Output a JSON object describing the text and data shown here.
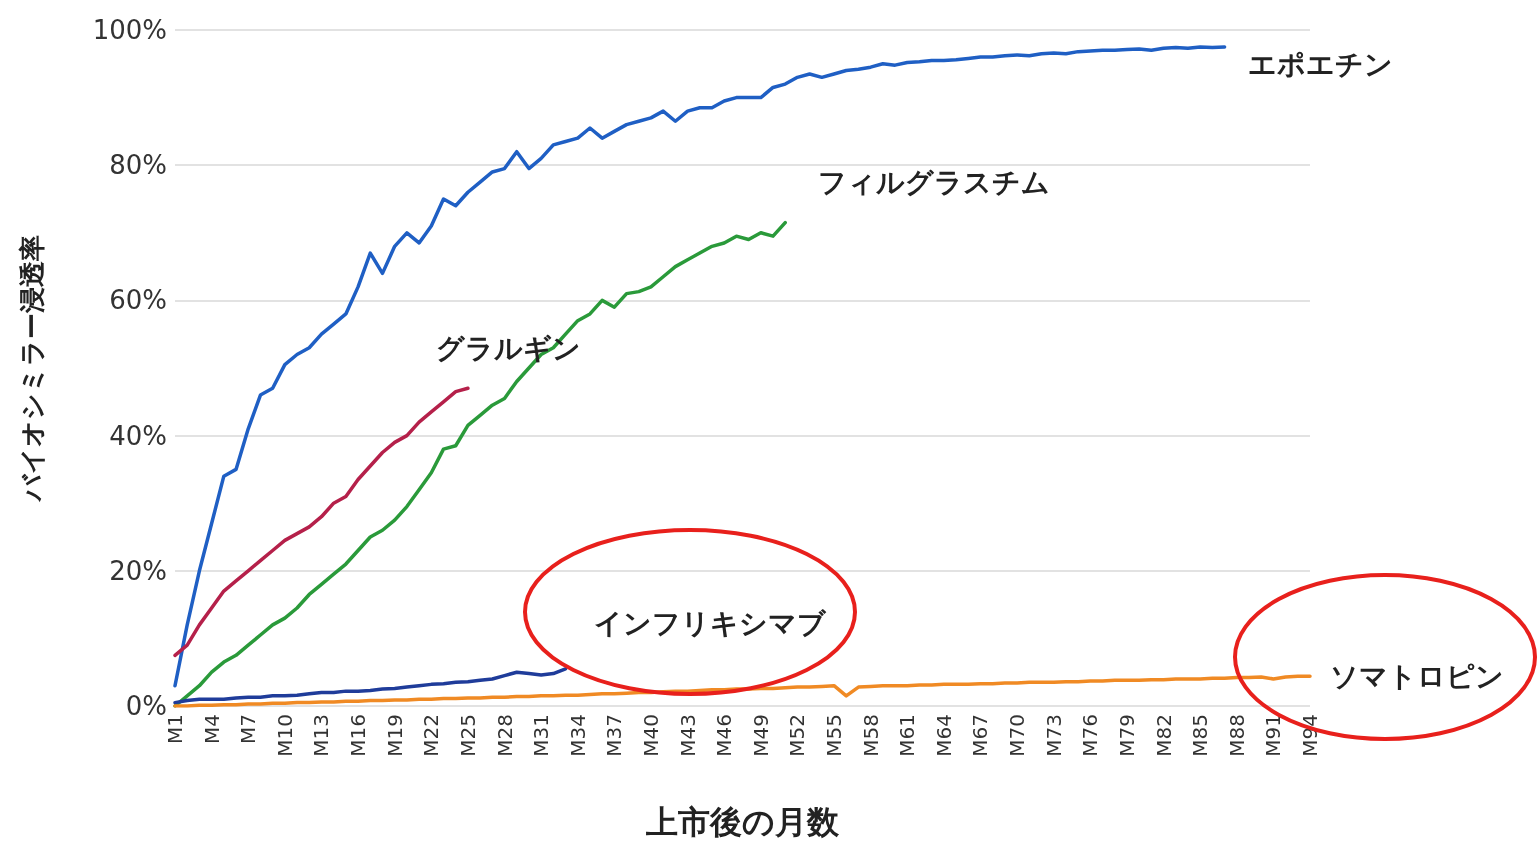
{
  "chart_data": {
    "type": "line",
    "xlabel": "上市後の月数",
    "ylabel": "バイオシミラー浸透率",
    "categories": [
      "M1",
      null,
      null,
      "M4",
      null,
      null,
      "M7",
      null,
      null,
      "M10",
      null,
      null,
      "M13",
      null,
      null,
      "M16",
      null,
      null,
      "M19",
      null,
      null,
      "M22",
      null,
      null,
      "M25",
      null,
      null,
      "M28",
      null,
      null,
      "M31",
      null,
      null,
      "M34",
      null,
      null,
      "M37",
      null,
      null,
      "M40",
      null,
      null,
      "M43",
      null,
      null,
      "M46",
      null,
      null,
      "M49",
      null,
      null,
      "M52",
      null,
      null,
      "M55",
      null,
      null,
      "M58",
      null,
      null,
      "M61",
      null,
      null,
      "M64",
      null,
      null,
      "M67",
      null,
      null,
      "M70",
      null,
      null,
      "M73",
      null,
      null,
      "M76",
      null,
      null,
      "M79",
      null,
      null,
      "M82",
      null,
      null,
      "M85",
      null,
      null,
      "M88",
      null,
      null,
      "M91",
      null,
      null,
      "M94"
    ],
    "ylim": [
      0,
      100
    ],
    "yticks": [
      {
        "value": 0,
        "label": "0%"
      },
      {
        "value": 20,
        "label": "20%"
      },
      {
        "value": 40,
        "label": "40%"
      },
      {
        "value": 60,
        "label": "60%"
      },
      {
        "value": 80,
        "label": "80%"
      },
      {
        "value": 100,
        "label": "100%"
      }
    ],
    "grid": "y",
    "legend": false,
    "marker": "none",
    "line_style": "solid",
    "series": [
      {
        "name": "エポエチン",
        "color": "#1f5fc4",
        "values": [
          3,
          12,
          20,
          27,
          34,
          35,
          41,
          46,
          47,
          50.5,
          52,
          53,
          55,
          56.5,
          58,
          62,
          67,
          64,
          68,
          70,
          68.5,
          71,
          75,
          74,
          76,
          77.5,
          79,
          79.5,
          82,
          79.5,
          81,
          83,
          83.5,
          84,
          85.5,
          84,
          85,
          86,
          86.5,
          87,
          88,
          86.5,
          88,
          88.5,
          88.5,
          89.5,
          90,
          90,
          90,
          91.5,
          92,
          93,
          93.5,
          93,
          93.5,
          94,
          94.2,
          94.5,
          95,
          94.8,
          95.2,
          95.3,
          95.5,
          95.5,
          95.6,
          95.8,
          96,
          96,
          96.2,
          96.3,
          96.2,
          96.5,
          96.6,
          96.5,
          96.8,
          96.9,
          97,
          97,
          97.1,
          97.2,
          97,
          97.3,
          97.4,
          97.3,
          97.5,
          97.4,
          97.5,
          null,
          null,
          null,
          null,
          null,
          null,
          null
        ]
      },
      {
        "name": "フィルグラスチム",
        "color": "#2a9a3a",
        "values": [
          0,
          1.5,
          3,
          5,
          6.5,
          7.5,
          9,
          10.5,
          12,
          13,
          14.5,
          16.5,
          18,
          19.5,
          21,
          23,
          25,
          26,
          27.5,
          29.5,
          32,
          34.5,
          38,
          38.5,
          41.5,
          43,
          44.5,
          45.5,
          48,
          50,
          52,
          53,
          55,
          57,
          58,
          60,
          59,
          61,
          61.3,
          62,
          63.5,
          65,
          66,
          67,
          68,
          68.5,
          69.5,
          69,
          70,
          69.5,
          71.5,
          null,
          null,
          null,
          null,
          null,
          null,
          null,
          null,
          null,
          null,
          null,
          null,
          null,
          null,
          null,
          null,
          null,
          null,
          null,
          null,
          null,
          null,
          null,
          null,
          null,
          null,
          null,
          null,
          null,
          null,
          null,
          null,
          null,
          null,
          null,
          null,
          null,
          null,
          null,
          null,
          null,
          null,
          null
        ]
      },
      {
        "name": "グラルギン",
        "color": "#b5204a",
        "values": [
          7.5,
          9,
          12,
          14.5,
          17,
          18.5,
          20,
          21.5,
          23,
          24.5,
          25.5,
          26.5,
          28,
          30,
          31,
          33.5,
          35.5,
          37.5,
          39,
          40,
          42,
          43.5,
          45,
          46.5,
          47,
          null,
          null,
          null,
          null,
          null,
          null,
          null,
          null,
          null,
          null,
          null,
          null,
          null,
          null,
          null,
          null,
          null,
          null,
          null,
          null,
          null,
          null,
          null,
          null,
          null,
          null,
          null,
          null,
          null,
          null,
          null,
          null,
          null,
          null,
          null,
          null,
          null,
          null,
          null,
          null,
          null,
          null,
          null,
          null,
          null,
          null,
          null,
          null,
          null,
          null,
          null,
          null,
          null,
          null,
          null,
          null,
          null,
          null,
          null,
          null,
          null,
          null,
          null,
          null,
          null,
          null,
          null,
          null,
          null
        ]
      },
      {
        "name": "インフリキシマブ",
        "color": "#1f3c9a",
        "values": [
          0.5,
          0.8,
          1,
          1,
          1,
          1.2,
          1.3,
          1.3,
          1.5,
          1.5,
          1.6,
          1.8,
          2,
          2,
          2.2,
          2.2,
          2.3,
          2.5,
          2.6,
          2.8,
          3,
          3.2,
          3.3,
          3.5,
          3.6,
          3.8,
          4,
          4.5,
          5,
          4.8,
          4.6,
          4.8,
          5.5,
          null,
          null,
          null,
          null,
          null,
          null,
          null,
          null,
          null,
          null,
          null,
          null,
          null,
          null,
          null,
          null,
          null,
          null,
          null,
          null,
          null,
          null,
          null,
          null,
          null,
          null,
          null,
          null,
          null,
          null,
          null,
          null,
          null,
          null,
          null,
          null,
          null,
          null,
          null,
          null,
          null,
          null,
          null,
          null,
          null,
          null,
          null,
          null,
          null,
          null,
          null,
          null,
          null,
          null,
          null,
          null,
          null,
          null,
          null,
          null,
          null
        ]
      },
      {
        "name": "ソマトロピン",
        "color": "#f08a24",
        "values": [
          0,
          0,
          0.1,
          0.1,
          0.2,
          0.2,
          0.3,
          0.3,
          0.4,
          0.4,
          0.5,
          0.5,
          0.6,
          0.6,
          0.7,
          0.7,
          0.8,
          0.8,
          0.9,
          0.9,
          1,
          1,
          1.1,
          1.1,
          1.2,
          1.2,
          1.3,
          1.3,
          1.4,
          1.4,
          1.5,
          1.5,
          1.6,
          1.6,
          1.7,
          1.8,
          1.8,
          1.9,
          2,
          2,
          2.1,
          2.2,
          2.2,
          2.3,
          2.4,
          2.4,
          2.5,
          2.5,
          2.6,
          2.6,
          2.7,
          2.8,
          2.8,
          2.9,
          3,
          1.5,
          2.8,
          2.9,
          3,
          3,
          3,
          3.1,
          3.1,
          3.2,
          3.2,
          3.2,
          3.3,
          3.3,
          3.4,
          3.4,
          3.5,
          3.5,
          3.5,
          3.6,
          3.6,
          3.7,
          3.7,
          3.8,
          3.8,
          3.8,
          3.9,
          3.9,
          4,
          4,
          4,
          4.1,
          4.1,
          4.2,
          4.2,
          4.3,
          4,
          4.3,
          4.4,
          4.4
        ]
      }
    ]
  }
}
